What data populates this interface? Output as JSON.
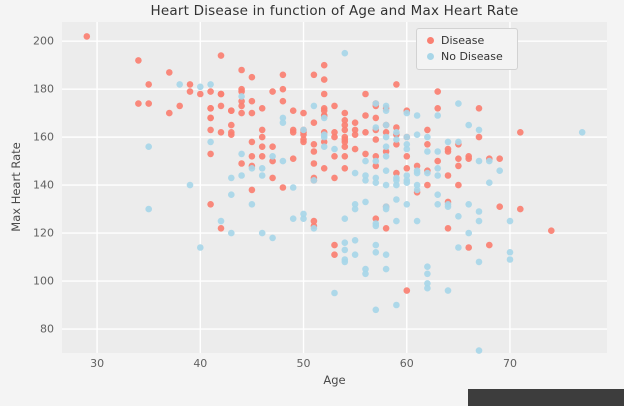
{
  "chart_data": {
    "type": "scatter",
    "title": "Heart Disease in function of Age and Max Heart Rate",
    "xlabel": "Age",
    "ylabel": "Max Heart Rate",
    "xlim": [
      26.6,
      79.4
    ],
    "ylim": [
      70,
      208
    ],
    "xticks": [
      30,
      40,
      50,
      60,
      70
    ],
    "yticks": [
      80,
      100,
      120,
      140,
      160,
      180,
      200
    ],
    "grid": true,
    "legend_position": "upper right",
    "colors": {
      "figure_bg": "#f4f4f4",
      "plot_bg": "#ececec",
      "grid": "#ffffff",
      "tick_label": "#616161",
      "title": "#333333"
    },
    "series": [
      {
        "name": "Disease",
        "color": "#fa8072",
        "points": [
          [
            63,
            150
          ],
          [
            37,
            187
          ],
          [
            41,
            172
          ],
          [
            56,
            178
          ],
          [
            57,
            163
          ],
          [
            57,
            148
          ],
          [
            56,
            153
          ],
          [
            44,
            173
          ],
          [
            52,
            162
          ],
          [
            57,
            174
          ],
          [
            54,
            160
          ],
          [
            48,
            139
          ],
          [
            49,
            171
          ],
          [
            64,
            144
          ],
          [
            58,
            162
          ],
          [
            50,
            158
          ],
          [
            58,
            172
          ],
          [
            66,
            114
          ],
          [
            43,
            171
          ],
          [
            69,
            151
          ],
          [
            59,
            161
          ],
          [
            44,
            179
          ],
          [
            42,
            178
          ],
          [
            61,
            137
          ],
          [
            40,
            178
          ],
          [
            71,
            162
          ],
          [
            59,
            157
          ],
          [
            51,
            123
          ],
          [
            65,
            157
          ],
          [
            53,
            152
          ],
          [
            41,
            168
          ],
          [
            65,
            140
          ],
          [
            44,
            188
          ],
          [
            54,
            152
          ],
          [
            51,
            125
          ],
          [
            46,
            160
          ],
          [
            54,
            170
          ],
          [
            54,
            165
          ],
          [
            65,
            148
          ],
          [
            65,
            151
          ],
          [
            51,
            142
          ],
          [
            48,
            180
          ],
          [
            45,
            148
          ],
          [
            53,
            143
          ],
          [
            39,
            182
          ],
          [
            52,
            172
          ],
          [
            44,
            180
          ],
          [
            47,
            156
          ],
          [
            53,
            115
          ],
          [
            53,
            160
          ],
          [
            51,
            149
          ],
          [
            66,
            151
          ],
          [
            62,
            146
          ],
          [
            44,
            175
          ],
          [
            63,
            172
          ],
          [
            52,
            158
          ],
          [
            48,
            186
          ],
          [
            45,
            185
          ],
          [
            34,
            174
          ],
          [
            57,
            159
          ],
          [
            71,
            130
          ],
          [
            54,
            156
          ],
          [
            52,
            190
          ],
          [
            41,
            132
          ],
          [
            58,
            165
          ],
          [
            35,
            182
          ],
          [
            51,
            143
          ],
          [
            45,
            175
          ],
          [
            44,
            170
          ],
          [
            62,
            163
          ],
          [
            54,
            147
          ],
          [
            51,
            154
          ],
          [
            29,
            202
          ],
          [
            51,
            186
          ],
          [
            43,
            165
          ],
          [
            55,
            161
          ],
          [
            51,
            166
          ],
          [
            59,
            164
          ],
          [
            52,
            184
          ],
          [
            58,
            154
          ],
          [
            41,
            179
          ],
          [
            45,
            170
          ],
          [
            60,
            160
          ],
          [
            52,
            178
          ],
          [
            42,
            122
          ],
          [
            67,
            160
          ],
          [
            68,
            151
          ],
          [
            46,
            156
          ],
          [
            54,
            158
          ],
          [
            58,
            122
          ],
          [
            48,
            175
          ],
          [
            57,
            168
          ],
          [
            52,
            169
          ],
          [
            54,
            159
          ],
          [
            45,
            138
          ],
          [
            53,
            111
          ],
          [
            62,
            157
          ],
          [
            52,
            147
          ],
          [
            43,
            162
          ],
          [
            53,
            173
          ],
          [
            42,
            178
          ],
          [
            59,
            145
          ],
          [
            63,
            179
          ],
          [
            42,
            194
          ],
          [
            50,
            163
          ],
          [
            68,
            115
          ],
          [
            69,
            131
          ],
          [
            45,
            152
          ],
          [
            50,
            162
          ],
          [
            50,
            159
          ],
          [
            64,
            154
          ],
          [
            57,
            173
          ],
          [
            64,
            133
          ],
          [
            43,
            161
          ],
          [
            55,
            155
          ],
          [
            37,
            170
          ],
          [
            41,
            168
          ],
          [
            56,
            162
          ],
          [
            46,
            172
          ],
          [
            46,
            152
          ],
          [
            64,
            122
          ],
          [
            59,
            182
          ],
          [
            41,
            172
          ],
          [
            54,
            167
          ],
          [
            39,
            179
          ],
          [
            34,
            192
          ],
          [
            47,
            143
          ],
          [
            67,
            172
          ],
          [
            52,
            169
          ],
          [
            74,
            121
          ],
          [
            54,
            163
          ],
          [
            49,
            162
          ],
          [
            42,
            162
          ],
          [
            41,
            153
          ],
          [
            41,
            163
          ],
          [
            49,
            163
          ],
          [
            60,
            96
          ],
          [
            62,
            140
          ],
          [
            57,
            126
          ],
          [
            64,
            155
          ],
          [
            51,
            157
          ],
          [
            43,
            171
          ],
          [
            58,
            131
          ],
          [
            60,
            171
          ],
          [
            42,
            173
          ],
          [
            38,
            173
          ],
          [
            66,
            152
          ],
          [
            44,
            149
          ],
          [
            47,
            179
          ],
          [
            35,
            174
          ],
          [
            55,
            166
          ],
          [
            56,
            169
          ],
          [
            60,
            147
          ],
          [
            49,
            151
          ],
          [
            53,
            162
          ],
          [
            47,
            150
          ],
          [
            60,
            152
          ],
          [
            55,
            163
          ],
          [
            50,
            161
          ],
          [
            52,
            171
          ],
          [
            45,
            158
          ],
          [
            57,
            152
          ],
          [
            61,
            148
          ],
          [
            46,
            163
          ],
          [
            50,
            170
          ]
        ]
      },
      {
        "name": "No Disease",
        "color": "#a8d6e8",
        "points": [
          [
            67,
            108
          ],
          [
            67,
            129
          ],
          [
            62,
            160
          ],
          [
            63,
            147
          ],
          [
            53,
            155
          ],
          [
            56,
            142
          ],
          [
            48,
            168
          ],
          [
            58,
            160
          ],
          [
            58,
            173
          ],
          [
            60,
            132
          ],
          [
            40,
            114
          ],
          [
            60,
            160
          ],
          [
            64,
            158
          ],
          [
            43,
            120
          ],
          [
            57,
            112
          ],
          [
            55,
            132
          ],
          [
            65,
            114
          ],
          [
            61,
            169
          ],
          [
            58,
            165
          ],
          [
            50,
            128
          ],
          [
            44,
            153
          ],
          [
            60,
            144
          ],
          [
            54,
            109
          ],
          [
            50,
            163
          ],
          [
            41,
            158
          ],
          [
            51,
            142
          ],
          [
            58,
            131
          ],
          [
            54,
            113
          ],
          [
            60,
            142
          ],
          [
            60,
            155
          ],
          [
            59,
            140
          ],
          [
            46,
            147
          ],
          [
            67,
            163
          ],
          [
            62,
            99
          ],
          [
            65,
            158
          ],
          [
            44,
            177
          ],
          [
            60,
            141
          ],
          [
            58,
            111
          ],
          [
            68,
            150
          ],
          [
            62,
            145
          ],
          [
            52,
            161
          ],
          [
            59,
            142
          ],
          [
            60,
            157
          ],
          [
            49,
            139
          ],
          [
            59,
            162
          ],
          [
            57,
            150
          ],
          [
            61,
            140
          ],
          [
            39,
            140
          ],
          [
            61,
            146
          ],
          [
            56,
            144
          ],
          [
            43,
            136
          ],
          [
            62,
            97
          ],
          [
            63,
            132
          ],
          [
            65,
            127
          ],
          [
            48,
            150
          ],
          [
            63,
            154
          ],
          [
            55,
            111
          ],
          [
            65,
            174
          ],
          [
            56,
            133
          ],
          [
            54,
            126
          ],
          [
            70,
            125
          ],
          [
            62,
            103
          ],
          [
            35,
            130
          ],
          [
            59,
            159
          ],
          [
            64,
            131
          ],
          [
            47,
            152
          ],
          [
            57,
            124
          ],
          [
            55,
            145
          ],
          [
            64,
            96
          ],
          [
            70,
            109
          ],
          [
            51,
            173
          ],
          [
            58,
            171
          ],
          [
            60,
            170
          ],
          [
            77,
            162
          ],
          [
            35,
            156
          ],
          [
            70,
            112
          ],
          [
            59,
            143
          ],
          [
            64,
            132
          ],
          [
            57,
            88
          ],
          [
            56,
            105
          ],
          [
            48,
            166
          ],
          [
            56,
            150
          ],
          [
            66,
            120
          ],
          [
            54,
            195
          ],
          [
            69,
            146
          ],
          [
            51,
            122
          ],
          [
            43,
            143
          ],
          [
            62,
            106
          ],
          [
            67,
            125
          ],
          [
            59,
            125
          ],
          [
            45,
            147
          ],
          [
            58,
            130
          ],
          [
            50,
            126
          ],
          [
            62,
            154
          ],
          [
            38,
            182
          ],
          [
            66,
            165
          ],
          [
            52,
            160
          ],
          [
            53,
            95
          ],
          [
            63,
            169
          ],
          [
            54,
            108
          ],
          [
            66,
            132
          ],
          [
            55,
            117
          ],
          [
            49,
            126
          ],
          [
            54,
            116
          ],
          [
            56,
            103
          ],
          [
            46,
            144
          ],
          [
            61,
            145
          ],
          [
            67,
            71
          ],
          [
            58,
            156
          ],
          [
            47,
            118
          ],
          [
            52,
            168
          ],
          [
            58,
            105
          ],
          [
            57,
            141
          ],
          [
            58,
            152
          ],
          [
            61,
            125
          ],
          [
            42,
            125
          ],
          [
            52,
            156
          ],
          [
            59,
            134
          ],
          [
            40,
            181
          ],
          [
            61,
            138
          ],
          [
            46,
            120
          ],
          [
            57,
            164
          ],
          [
            57,
            143
          ],
          [
            55,
            130
          ],
          [
            61,
            161
          ],
          [
            58,
            140
          ],
          [
            58,
            146
          ],
          [
            67,
            150
          ],
          [
            44,
            144
          ],
          [
            63,
            144
          ],
          [
            63,
            136
          ],
          [
            41,
            182
          ],
          [
            59,
            90
          ],
          [
            57,
            123
          ],
          [
            45,
            132
          ],
          [
            68,
            141
          ],
          [
            57,
            115
          ],
          [
            57,
            174
          ]
        ]
      }
    ]
  }
}
